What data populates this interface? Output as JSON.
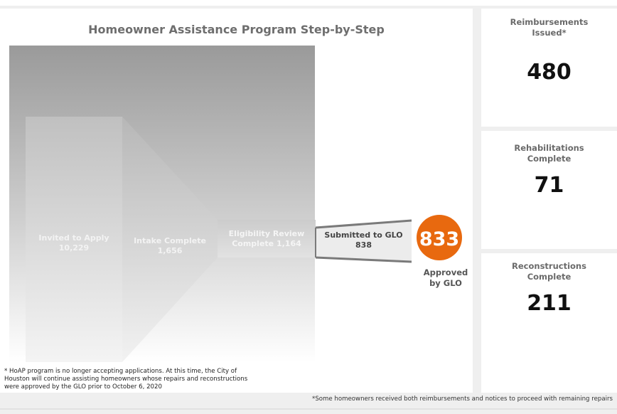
{
  "title": "Homeowner Assistance Program Step-by-Step",
  "chart_data": {
    "type": "funnel",
    "title": "Homeowner Assistance Program Step-by-Step",
    "stages": [
      {
        "label": "Invited to Apply",
        "value": "10,229"
      },
      {
        "label": "Intake Complete",
        "value": "1,656"
      },
      {
        "label": "Eligibility Review Complete",
        "value": "1,164"
      },
      {
        "label": "Submitted to GLO",
        "value": "838"
      }
    ],
    "final": {
      "value": "833",
      "label_line1": "Approved",
      "label_line2": "by GLO"
    }
  },
  "labels": {
    "invited_l1": "Invited to Apply",
    "invited_l2": "10,229",
    "intake_l1": "Intake Complete",
    "intake_l2": "1,656",
    "elig_l1": "Eligibility Review",
    "elig_l2": "Complete 1,164",
    "submitted_l1": "Submitted to GLO",
    "submitted_l2": "838",
    "approved_value": "833",
    "approved_l1": "Approved",
    "approved_l2": "by GLO"
  },
  "kpis": {
    "reimbursements": {
      "label_l1": "Reimbursements",
      "label_l2": "Issued*",
      "value": "480"
    },
    "rehabilitations": {
      "label_l1": "Rehabilitations",
      "label_l2": "Complete",
      "value": "71"
    },
    "reconstructions": {
      "label_l1": "Reconstructions",
      "label_l2": "Complete",
      "value": "211"
    }
  },
  "footnote": {
    "line1": "* HoAP program is no longer accepting applications. At this time, the City of",
    "line2": "Houston will continue assisting homeowners whose repairs and reconstructions",
    "line3": "were approved by the GLO prior to October 6, 2020"
  },
  "bottom_note": "*Some homeowners received both reimbursements and notices to proceed with remaining repairs",
  "colors": {
    "accent_orange": "#e8690f",
    "title_gray": "#6e6e6e",
    "label_light": "#f0f0f0",
    "label_dark": "#444444"
  }
}
